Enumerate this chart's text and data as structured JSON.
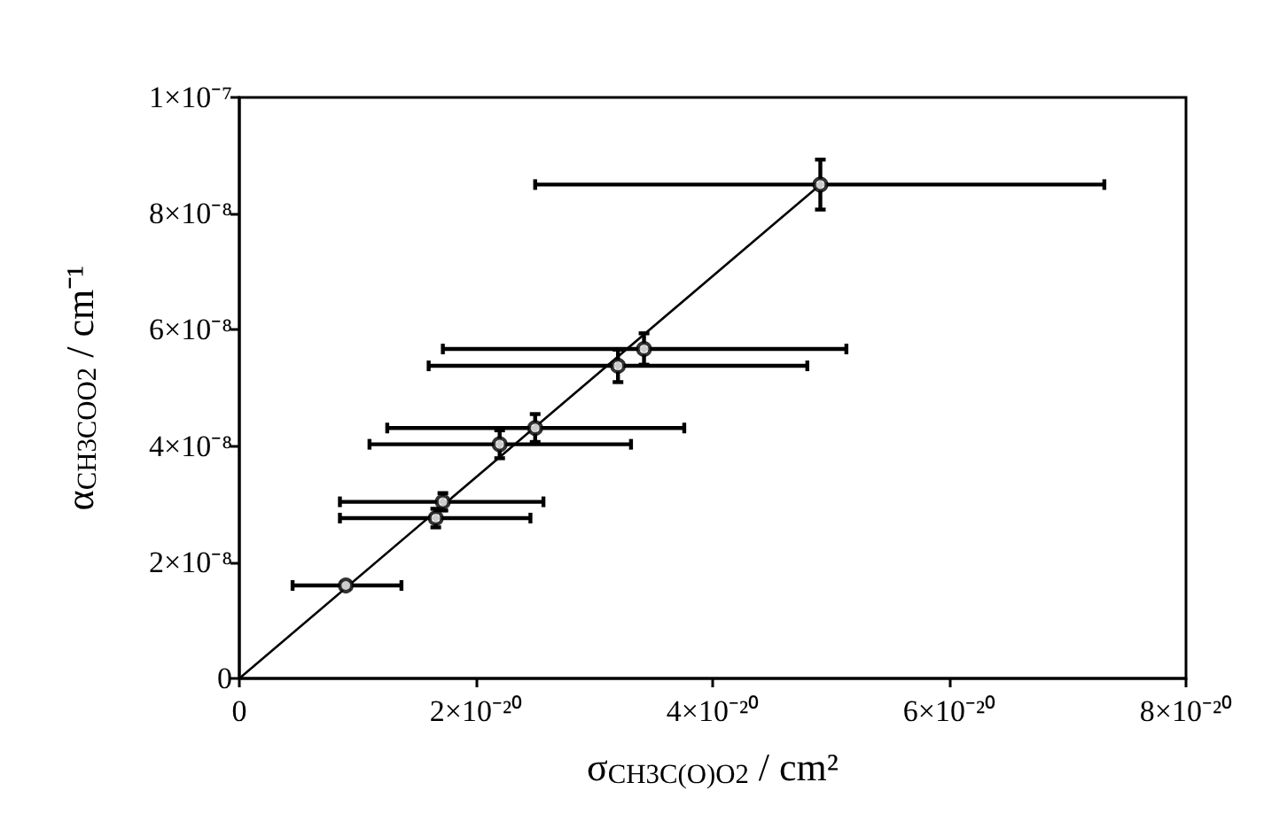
{
  "chart_data": {
    "type": "scatter",
    "xlabel": "σ$_{CH3C(O)O2}$ / cm²",
    "ylabel": "α$_{CH3COO2}$ / cm⁻¹",
    "xlim": [
      0,
      8e-20
    ],
    "xticks": [
      0,
      {
        "value": 2e-20,
        "label": "2×10⁻²⁰"
      },
      {
        "value": 4e-20,
        "label": "4×10⁻²⁰"
      },
      {
        "value": 6e-20,
        "label": "6×10⁻²⁰"
      },
      {
        "value": 8e-20,
        "label": "8×10⁻²⁰"
      }
    ],
    "ylim": [
      0,
      1e-07
    ],
    "yticks": [
      0,
      {
        "value": 2e-08,
        "label": "2×10⁻⁸"
      },
      {
        "value": 4e-08,
        "label": "4×10⁻⁸"
      },
      {
        "value": 6e-08,
        "label": "6×10⁻⁸"
      },
      {
        "value": 8e-08,
        "label": "8×10⁻⁸"
      },
      {
        "value": 1e-07,
        "label": "1×10⁻⁷"
      }
    ],
    "grid": false,
    "series": [
      {
        "color": "#000000",
        "marker": "circle",
        "x": [
          9e-21,
          1.66e-20,
          1.72e-20,
          2.2e-20,
          2.5e-20,
          3.2e-20,
          3.42e-20,
          4.91e-20
        ],
        "values": [
          1.6e-08,
          2.76e-08,
          3.04e-08,
          4.03e-08,
          4.31e-08,
          5.38e-08,
          5.67e-08,
          8.5e-08
        ],
        "errors": [
          5e-10,
          1.6e-09,
          1.5e-09,
          2.4e-09,
          2.4e-09,
          2.8e-09,
          2.7e-09,
          4.3e-09
        ],
        "xerrors": [
          [
            4.5e-21,
            1.37e-20
          ],
          [
            8.5e-21,
            2.46e-20
          ],
          [
            8.5e-21,
            2.57e-20
          ],
          [
            1.1e-20,
            3.31e-20
          ],
          [
            1.25e-20,
            3.76e-20
          ],
          [
            1.6e-20,
            4.8e-20
          ],
          [
            1.72e-20,
            5.13e-20
          ],
          [
            2.5e-20,
            7.31e-20
          ]
        ]
      },
      {
        "type": "line",
        "color": "#000000",
        "marker": "none",
        "line_style": "solid",
        "x": [
          0,
          4.91e-20
        ],
        "values": [
          0,
          8.5e-08
        ]
      }
    ]
  }
}
